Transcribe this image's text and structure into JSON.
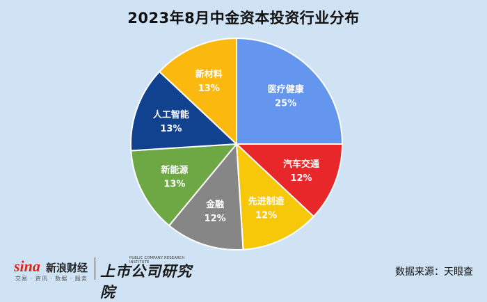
{
  "title": "2023年8月中金资本投资行业分布",
  "chart_data": {
    "type": "pie",
    "title": "2023年8月中金资本投资行业分布",
    "slices": [
      {
        "label": "医疗健康",
        "value": 25,
        "display": "25%",
        "color": "#6496f0"
      },
      {
        "label": "汽车交通",
        "value": 12,
        "display": "12%",
        "color": "#e8272b"
      },
      {
        "label": "先进制造",
        "value": 12,
        "display": "12%",
        "color": "#f7c80a"
      },
      {
        "label": "金融",
        "value": 12,
        "display": "12%",
        "color": "#868686"
      },
      {
        "label": "新能源",
        "value": 13,
        "display": "13%",
        "color": "#6ea844"
      },
      {
        "label": "人工智能",
        "value": 13,
        "display": "13%",
        "color": "#11428f"
      },
      {
        "label": "新材料",
        "value": 13,
        "display": "13%",
        "color": "#fbb910"
      }
    ],
    "start_angle_deg": 0,
    "direction": "clockwise",
    "legend": "none",
    "labels": "inside"
  },
  "footer": {
    "sina_word": "sina",
    "sina_cn": "新浪财经",
    "sina_sub": "交易 · 资讯 · 数据 · 服务",
    "institute_cn": "上市公司研究院",
    "institute_en": "PUBLIC COMPANY RESEARCH INSTITUTE",
    "source": "数据来源：天眼查"
  },
  "colors": {
    "background": "#cfe3f5",
    "slice_border": "#ffffff",
    "label_text": "#ffffff"
  }
}
